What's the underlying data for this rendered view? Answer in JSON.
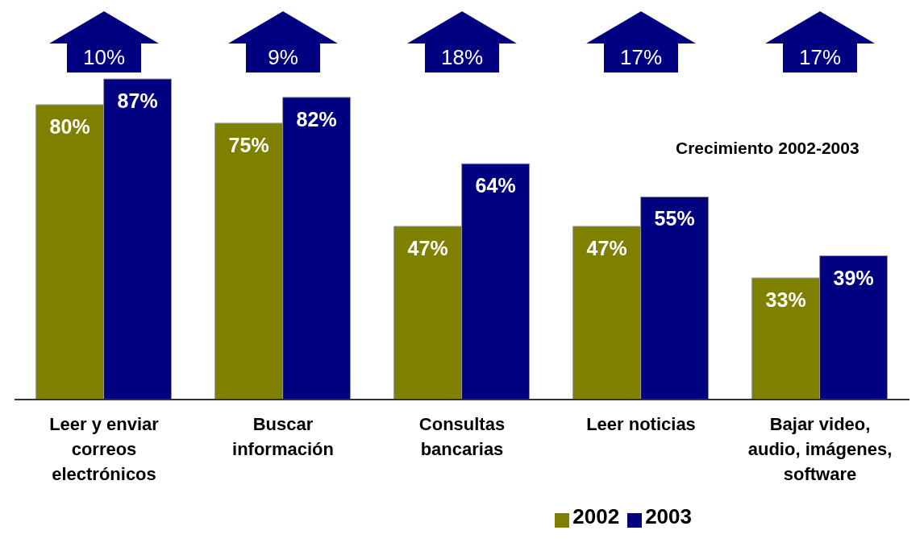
{
  "chart_data": {
    "type": "bar",
    "categories": [
      "Leer y enviar correos electrónicos",
      "Buscar información",
      "Consultas bancarias",
      "Leer noticias",
      "Bajar video, audio, imágenes, software"
    ],
    "series": [
      {
        "name": "2002",
        "color": "#808000",
        "values": [
          80,
          75,
          47,
          47,
          33
        ],
        "value_labels": [
          "80%",
          "75%",
          "47%",
          "47%",
          "33%"
        ]
      },
      {
        "name": "2003",
        "color": "#000080",
        "values": [
          87,
          82,
          64,
          55,
          39
        ],
        "value_labels": [
          "87%",
          "82%",
          "64%",
          "55%",
          "39%"
        ]
      }
    ],
    "annotations": [
      "10%",
      "9%",
      "18%",
      "17%",
      "17%",
      "Crecimiento 2002-2003"
    ],
    "legend": "bottom",
    "grid": false
  }
}
